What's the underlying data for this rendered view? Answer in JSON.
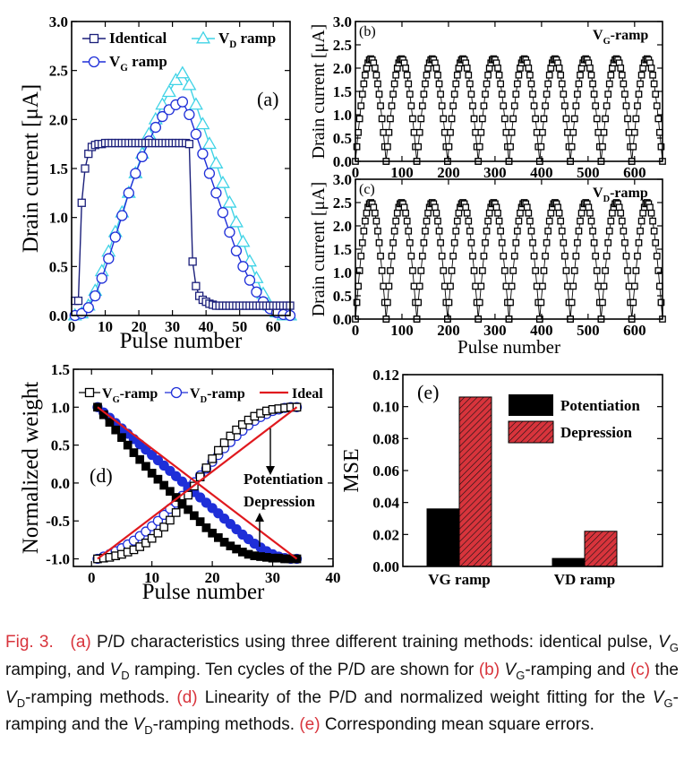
{
  "chart_data": [
    {
      "panel": "(a)",
      "type": "line",
      "ylabel": "Drain current [μA]",
      "xlabel": "Pulse number",
      "xlim": [
        0,
        65
      ],
      "ylim": [
        0,
        3.0
      ],
      "xticks": [
        "0",
        "10",
        "20",
        "30",
        "40",
        "50",
        "60"
      ],
      "yticks": [
        "0.0",
        "0.5",
        "1.0",
        "1.5",
        "2.0",
        "2.5",
        "3.0"
      ],
      "legend": [
        "Identical",
        "V_D ramp",
        "V_G ramp"
      ],
      "series": [
        {
          "name": "Identical",
          "marker": "square",
          "color": "#1b1f7a",
          "x": [
            1,
            2,
            3,
            4,
            5,
            6,
            7,
            8,
            9,
            10,
            11,
            12,
            13,
            14,
            15,
            16,
            17,
            18,
            19,
            20,
            21,
            22,
            23,
            24,
            25,
            26,
            27,
            28,
            29,
            30,
            31,
            32,
            33,
            34,
            35,
            36,
            37,
            38,
            39,
            40,
            41,
            42,
            43,
            44,
            45,
            46,
            47,
            48,
            49,
            50,
            51,
            52,
            53,
            54,
            55,
            56,
            57,
            58,
            59,
            60,
            61,
            62,
            63,
            64,
            65
          ],
          "y": [
            0.15,
            0.15,
            1.15,
            1.5,
            1.65,
            1.72,
            1.74,
            1.75,
            1.75,
            1.76,
            1.76,
            1.76,
            1.76,
            1.76,
            1.76,
            1.76,
            1.76,
            1.76,
            1.76,
            1.76,
            1.76,
            1.76,
            1.76,
            1.76,
            1.76,
            1.76,
            1.76,
            1.76,
            1.76,
            1.76,
            1.76,
            1.76,
            1.76,
            1.76,
            1.75,
            0.55,
            0.3,
            0.2,
            0.16,
            0.14,
            0.12,
            0.11,
            0.1,
            0.1,
            0.1,
            0.1,
            0.1,
            0.1,
            0.1,
            0.1,
            0.1,
            0.1,
            0.1,
            0.1,
            0.1,
            0.1,
            0.1,
            0.1,
            0.1,
            0.1,
            0.1,
            0.1,
            0.1,
            0.1,
            0.1
          ]
        },
        {
          "name": "V_D ramp",
          "marker": "triangle",
          "color": "#3fd3e6",
          "x": [
            1,
            3,
            5,
            7,
            9,
            11,
            13,
            15,
            17,
            19,
            21,
            23,
            25,
            27,
            29,
            31,
            33,
            35,
            37,
            39,
            41,
            43,
            45,
            47,
            49,
            51,
            53,
            55,
            57,
            59,
            61,
            63,
            65
          ],
          "y": [
            0.0,
            0.02,
            0.1,
            0.25,
            0.45,
            0.65,
            0.85,
            1.05,
            1.25,
            1.45,
            1.65,
            1.85,
            2.0,
            2.15,
            2.28,
            2.4,
            2.47,
            2.35,
            2.15,
            1.95,
            1.75,
            1.55,
            1.35,
            1.15,
            0.95,
            0.75,
            0.55,
            0.38,
            0.22,
            0.1,
            0.03,
            0.0,
            0.0
          ]
        },
        {
          "name": "V_G ramp",
          "marker": "circle",
          "color": "#1f2fd8",
          "x": [
            1,
            3,
            5,
            7,
            9,
            11,
            13,
            15,
            17,
            19,
            21,
            23,
            25,
            27,
            29,
            31,
            33,
            35,
            37,
            39,
            41,
            43,
            45,
            47,
            49,
            51,
            53,
            55,
            57,
            59,
            61,
            63,
            65
          ],
          "y": [
            0.0,
            0.02,
            0.08,
            0.2,
            0.38,
            0.58,
            0.8,
            1.02,
            1.25,
            1.45,
            1.62,
            1.78,
            1.92,
            2.03,
            2.1,
            2.15,
            2.18,
            2.05,
            1.85,
            1.65,
            1.45,
            1.25,
            1.05,
            0.85,
            0.66,
            0.5,
            0.36,
            0.24,
            0.14,
            0.07,
            0.03,
            0.01,
            0.0
          ]
        }
      ]
    },
    {
      "panel": "(b)",
      "type": "line",
      "label": "V_G-ramp",
      "ylabel": "Drain current [μA]",
      "xlim": [
        0,
        660
      ],
      "ylim": [
        0,
        3.0
      ],
      "xticks": [
        "0",
        "100",
        "200",
        "300",
        "400",
        "500",
        "600"
      ],
      "yticks": [
        "0.0",
        "0.5",
        "1.0",
        "1.5",
        "2.0",
        "2.5",
        "3.0"
      ],
      "cycles": 10,
      "period": 66,
      "peak": 2.2,
      "min": 0.0,
      "marker": "square"
    },
    {
      "panel": "(c)",
      "type": "line",
      "label": "V_D-ramp",
      "ylabel": "Drain current [μA]",
      "xlabel": "Pulse number",
      "xlim": [
        0,
        660
      ],
      "ylim": [
        0,
        3.0
      ],
      "xticks": [
        "0",
        "100",
        "200",
        "300",
        "400",
        "500",
        "600"
      ],
      "yticks": [
        "0.0",
        "0.5",
        "1.0",
        "1.5",
        "2.0",
        "2.5",
        "3.0"
      ],
      "cycles": 10,
      "period": 66,
      "peak": 2.5,
      "min": 0.0,
      "marker": "square"
    },
    {
      "panel": "(d)",
      "type": "line",
      "ylabel": "Normalized weight",
      "xlabel": "Pulse number",
      "xlim": [
        -3,
        40
      ],
      "ylim": [
        -1.1,
        1.5
      ],
      "xticks": [
        "0",
        "10",
        "20",
        "30",
        "40"
      ],
      "yticks": [
        "-1.0",
        "-0.5",
        "0.0",
        "0.5",
        "1.0",
        "1.5"
      ],
      "legend": [
        "V_G-ramp",
        "V_D-ramp",
        "Ideal"
      ],
      "annotations": [
        "Potentiation",
        "Depression"
      ],
      "series": [
        {
          "name": "V_G-ramp potentiation",
          "marker": "square",
          "color": "#000000",
          "x": [
            1,
            2,
            3,
            4,
            5,
            6,
            7,
            8,
            9,
            10,
            11,
            12,
            13,
            14,
            15,
            16,
            17,
            18,
            19,
            20,
            21,
            22,
            23,
            24,
            25,
            26,
            27,
            28,
            29,
            30,
            31,
            32,
            33,
            34
          ],
          "y": [
            -1.0,
            -0.99,
            -0.98,
            -0.96,
            -0.94,
            -0.91,
            -0.88,
            -0.84,
            -0.79,
            -0.73,
            -0.66,
            -0.58,
            -0.49,
            -0.39,
            -0.28,
            -0.16,
            -0.04,
            0.08,
            0.2,
            0.32,
            0.43,
            0.53,
            0.62,
            0.7,
            0.77,
            0.83,
            0.88,
            0.92,
            0.95,
            0.97,
            0.98,
            0.99,
            1.0,
            1.0
          ]
        },
        {
          "name": "V_G-ramp depression",
          "marker": "square-filled",
          "color": "#000000",
          "x": [
            1,
            2,
            3,
            4,
            5,
            6,
            7,
            8,
            9,
            10,
            11,
            12,
            13,
            14,
            15,
            16,
            17,
            18,
            19,
            20,
            21,
            22,
            23,
            24,
            25,
            26,
            27,
            28,
            29,
            30,
            31,
            32,
            33,
            34
          ],
          "y": [
            1.0,
            0.9,
            0.8,
            0.7,
            0.6,
            0.5,
            0.4,
            0.31,
            0.22,
            0.13,
            0.05,
            -0.03,
            -0.11,
            -0.19,
            -0.27,
            -0.35,
            -0.43,
            -0.51,
            -0.59,
            -0.66,
            -0.72,
            -0.78,
            -0.83,
            -0.87,
            -0.91,
            -0.94,
            -0.96,
            -0.97,
            -0.98,
            -0.99,
            -0.99,
            -1.0,
            -1.0,
            -1.0
          ]
        },
        {
          "name": "V_D-ramp potentiation",
          "marker": "circle",
          "color": "#1f2fd8",
          "x": [
            1,
            2,
            3,
            4,
            5,
            6,
            7,
            8,
            9,
            10,
            11,
            12,
            13,
            14,
            15,
            16,
            17,
            18,
            19,
            20,
            21,
            22,
            23,
            24,
            25,
            26,
            27,
            28,
            29,
            30,
            31,
            32,
            33,
            34
          ],
          "y": [
            -1.0,
            -0.97,
            -0.94,
            -0.9,
            -0.86,
            -0.81,
            -0.76,
            -0.7,
            -0.64,
            -0.57,
            -0.5,
            -0.42,
            -0.34,
            -0.26,
            -0.17,
            -0.08,
            0.01,
            0.1,
            0.19,
            0.28,
            0.37,
            0.46,
            0.54,
            0.62,
            0.69,
            0.76,
            0.82,
            0.87,
            0.91,
            0.95,
            0.97,
            0.99,
            1.0,
            1.0
          ]
        },
        {
          "name": "V_D-ramp depression",
          "marker": "circle-filled",
          "color": "#1f2fd8",
          "x": [
            1,
            2,
            3,
            4,
            5,
            6,
            7,
            8,
            9,
            10,
            11,
            12,
            13,
            14,
            15,
            16,
            17,
            18,
            19,
            20,
            21,
            22,
            23,
            24,
            25,
            26,
            27,
            28,
            29,
            30,
            31,
            32,
            33,
            34
          ],
          "y": [
            1.0,
            0.93,
            0.86,
            0.79,
            0.72,
            0.65,
            0.58,
            0.51,
            0.44,
            0.37,
            0.3,
            0.23,
            0.16,
            0.09,
            0.02,
            -0.05,
            -0.12,
            -0.19,
            -0.26,
            -0.33,
            -0.4,
            -0.47,
            -0.54,
            -0.61,
            -0.68,
            -0.74,
            -0.8,
            -0.85,
            -0.9,
            -0.94,
            -0.97,
            -0.99,
            -1.0,
            -1.0
          ]
        },
        {
          "name": "Ideal potentiation",
          "marker": "none",
          "color": "#e0191e",
          "x": [
            1,
            34
          ],
          "y": [
            -1.0,
            1.0
          ]
        },
        {
          "name": "Ideal depression",
          "marker": "none",
          "color": "#e0191e",
          "x": [
            1,
            34
          ],
          "y": [
            1.0,
            -1.0
          ]
        }
      ]
    },
    {
      "panel": "(e)",
      "type": "bar",
      "ylabel": "MSE",
      "categories": [
        "VG ramp",
        "VD ramp"
      ],
      "ylim": [
        0,
        0.12
      ],
      "yticks": [
        "0.00",
        "0.02",
        "0.04",
        "0.06",
        "0.08",
        "0.10",
        "0.12"
      ],
      "legend": [
        "Potentiation",
        "Depression"
      ],
      "series": [
        {
          "name": "Potentiation",
          "values": [
            0.036,
            0.005
          ],
          "color": "#000000"
        },
        {
          "name": "Depression",
          "values": [
            0.106,
            0.022
          ],
          "color": "#d8343c"
        }
      ]
    }
  ],
  "caption": {
    "fig": "Fig. 3.",
    "a": "(a)",
    "t1": " P/D characteristics using three different training methods: identical pulse, ",
    "vg": "V",
    "g": "G",
    "t2": " ramping, and ",
    "vd": "V",
    "d": "D",
    "t3": " ramping. Ten cycles of the P/D are shown for ",
    "b": "(b)",
    "t4": "-ramping and ",
    "c": "(c)",
    "t5": " the ",
    "t6": "-ramping methods. ",
    "dd": "(d)",
    "t7": " Linearity of the P/D and normalized weight fitting for the ",
    "t8": "-ramping and the ",
    "t9": "-ramping methods. ",
    "e": "(e)",
    "t10": " Corresponding mean square errors."
  }
}
